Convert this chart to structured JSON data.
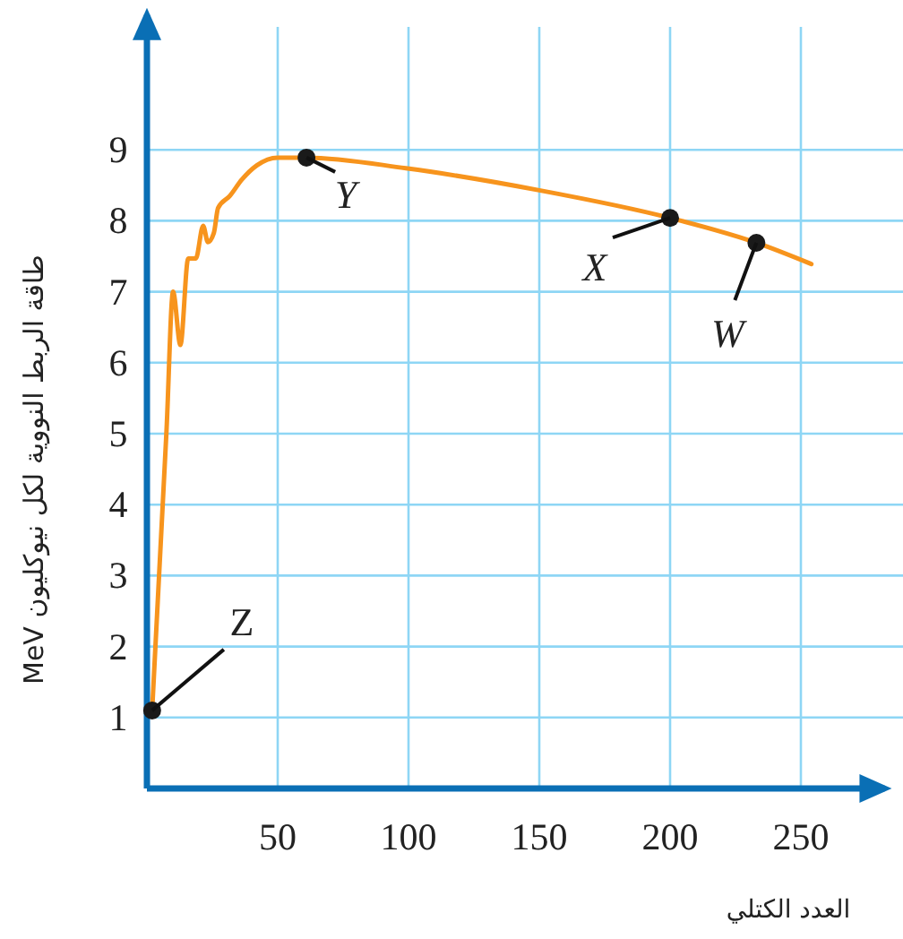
{
  "chart_data": {
    "type": "line",
    "xlabel": "العدد الكتلي",
    "ylabel": "طاقة الربط النووية لكل نيوكليون MeV",
    "xlim": [
      0,
      282
    ],
    "ylim": [
      0,
      10.9
    ],
    "xticks": [
      50,
      100,
      150,
      200,
      250
    ],
    "yticks": [
      1,
      2,
      3,
      4,
      5,
      6,
      7,
      8,
      9
    ],
    "grid": true,
    "series": [
      {
        "color": "#f7941d",
        "marker": "none",
        "x": [
          2,
          7.5,
          10,
          12.8,
          15.8,
          18.7,
          21.5,
          23.3,
          25.6,
          27.2,
          31.7,
          36.3,
          42,
          50,
          61,
          99,
          150,
          200,
          233,
          254
        ],
        "values": [
          1.1,
          5.05,
          7.0,
          6.25,
          7.47,
          7.47,
          7.93,
          7.7,
          7.83,
          8.18,
          8.35,
          8.58,
          8.78,
          8.89,
          8.89,
          8.74,
          8.43,
          8.04,
          7.69,
          7.39
        ]
      },
      {
        "type": "scatter",
        "color": "#1a1a1a",
        "marker": "circle",
        "x": [
          2,
          61,
          200,
          233
        ],
        "values": [
          1.1,
          8.89,
          8.04,
          7.69
        ]
      }
    ],
    "annotations": [
      {
        "text": "Z",
        "x": 2,
        "y": 1.1
      },
      {
        "text": "Y",
        "x": 61,
        "y": 8.89
      },
      {
        "text": "X",
        "x": 200,
        "y": 8.04
      },
      {
        "text": "W",
        "x": 233,
        "y": 7.69
      }
    ]
  }
}
